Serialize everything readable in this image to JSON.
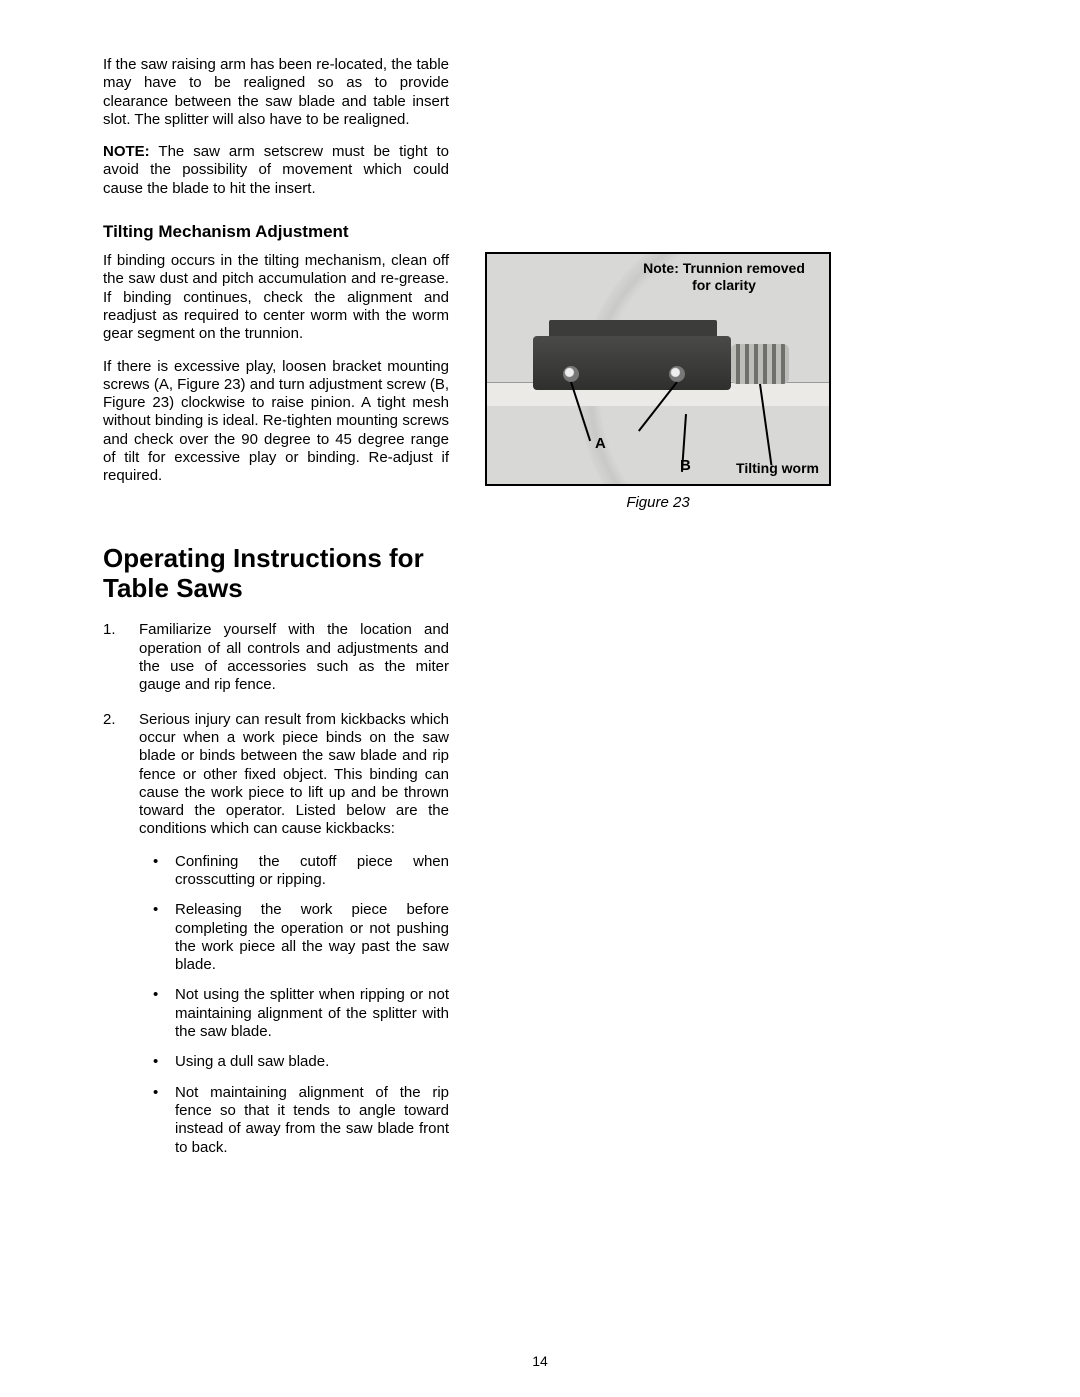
{
  "page_number": "14",
  "left": {
    "para1": "If the saw raising arm has been re-located, the table may have to be realigned so as to provide clearance between the saw blade and table insert slot. The splitter will also have to be realigned.",
    "note_label": "NOTE:",
    "note_text": "  The saw arm setscrew must be tight to avoid the possibility of movement which could cause the blade to hit the insert.",
    "sub_heading": "Tilting Mechanism Adjustment",
    "para2": "If binding occurs in the tilting mechanism, clean off the saw dust and pitch accumulation and re-grease. If binding continues, check the alignment and readjust as required to center worm with the worm gear segment on the trunnion.",
    "para3": "If there is excessive play, loosen bracket mounting screws (A, Figure 23) and turn adjustment screw (B, Figure 23) clockwise to raise pinion. A tight mesh without binding is ideal. Re-tighten mounting screws and check over the 90 degree to 45 degree range of tilt for excessive play or binding. Re-adjust if required.",
    "main_heading": "Operating Instructions for Table Saws",
    "item1": "Familiarize yourself with the location and operation of all controls and adjustments and the use of accessories such as the miter gauge and rip fence.",
    "item2": "Serious injury can result from kickbacks which occur when a work piece binds on the saw blade or binds between the saw blade and rip fence or other fixed object. This binding can cause the work piece to lift up and be thrown toward the operator. Listed below are the conditions which can cause kickbacks:",
    "b1": "Confining the cutoff piece when crosscutting or ripping.",
    "b2": "Releasing the work piece before completing the operation or not pushing the work piece all the way past the saw blade.",
    "b3": "Not using the splitter when ripping or not maintaining alignment of the splitter with the saw blade.",
    "b4": "Using a dull saw blade.",
    "b5": "Not maintaining alignment of the rip fence so that it tends to angle toward instead of away from the saw blade front to back."
  },
  "figure": {
    "note_line1": "Note: Trunnion removed",
    "note_line2": "for clarity",
    "label_a": "A",
    "label_b": "B",
    "tilting_worm": "Tilting worm",
    "caption": "Figure 23",
    "colors": {
      "border": "#000000",
      "background": "#d8d8d6",
      "mechanism": "#3c3c3a",
      "worm_light": "#bdbdb9",
      "worm_dark": "#6f6f6b",
      "plate": "#eceae6"
    }
  }
}
